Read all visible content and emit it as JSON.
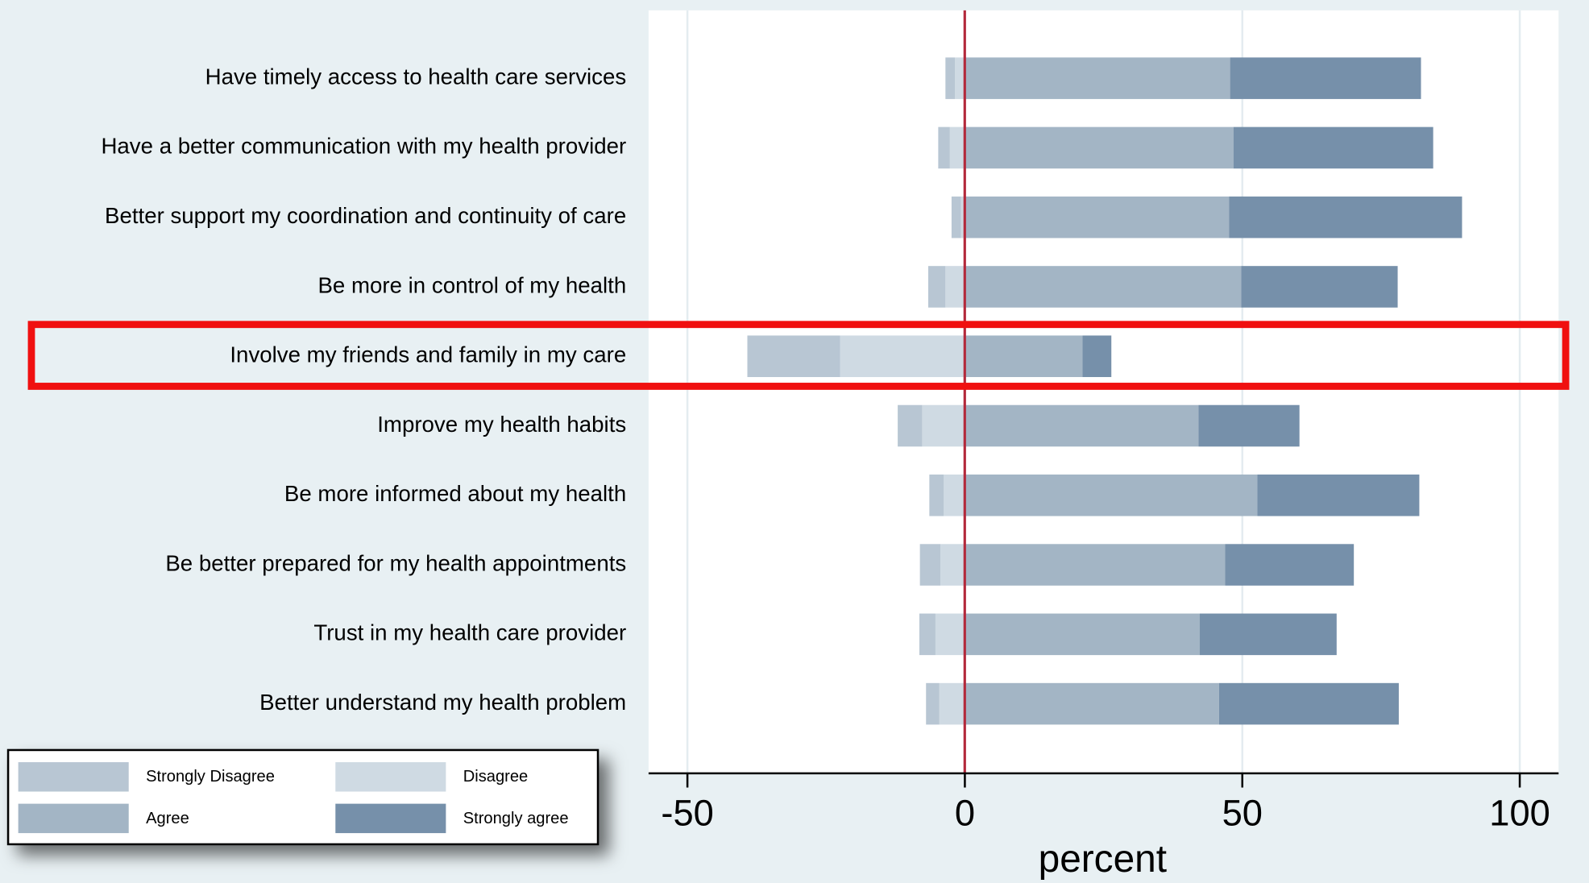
{
  "chart_data": {
    "type": "bar",
    "orientation": "horizontal",
    "stacked": true,
    "diverging": true,
    "categories": [
      "Have timely access to health care services",
      "Have a better communication with my health provider",
      "Better support my coordination and continuity of care",
      "Be more in control of my health",
      "Involve my friends and family in my care",
      "Improve my health habits",
      "Be more informed about my health",
      "Be better prepared for my health appointments",
      "Trust in my health care provider",
      "Better understand my health problem"
    ],
    "series": [
      {
        "name": "Strongly Disagree",
        "color": "#b8c6d3",
        "values": [
          -1.7,
          -2.1,
          -1.7,
          -3.1,
          -16.7,
          -4.4,
          -2.6,
          -3.7,
          -2.9,
          -2.4
        ]
      },
      {
        "name": "Disagree",
        "color": "#cfdae3",
        "values": [
          -1.8,
          -2.7,
          -0.7,
          -3.5,
          -22.5,
          -7.7,
          -3.8,
          -4.4,
          -5.3,
          -4.6
        ]
      },
      {
        "name": "Agree",
        "color": "#a3b5c5",
        "values": [
          47.8,
          48.4,
          47.6,
          49.8,
          21.2,
          42.1,
          52.7,
          46.9,
          42.3,
          45.8
        ]
      },
      {
        "name": "Strongly agree",
        "color": "#7690aa",
        "values": [
          34.4,
          36.0,
          42.0,
          28.2,
          5.2,
          18.2,
          29.2,
          23.2,
          24.7,
          32.4
        ]
      }
    ],
    "xlabel": "percent",
    "xlim": [
      -57,
      107
    ],
    "xticks": [
      -50,
      0,
      50,
      100
    ],
    "grid": true
  }
}
